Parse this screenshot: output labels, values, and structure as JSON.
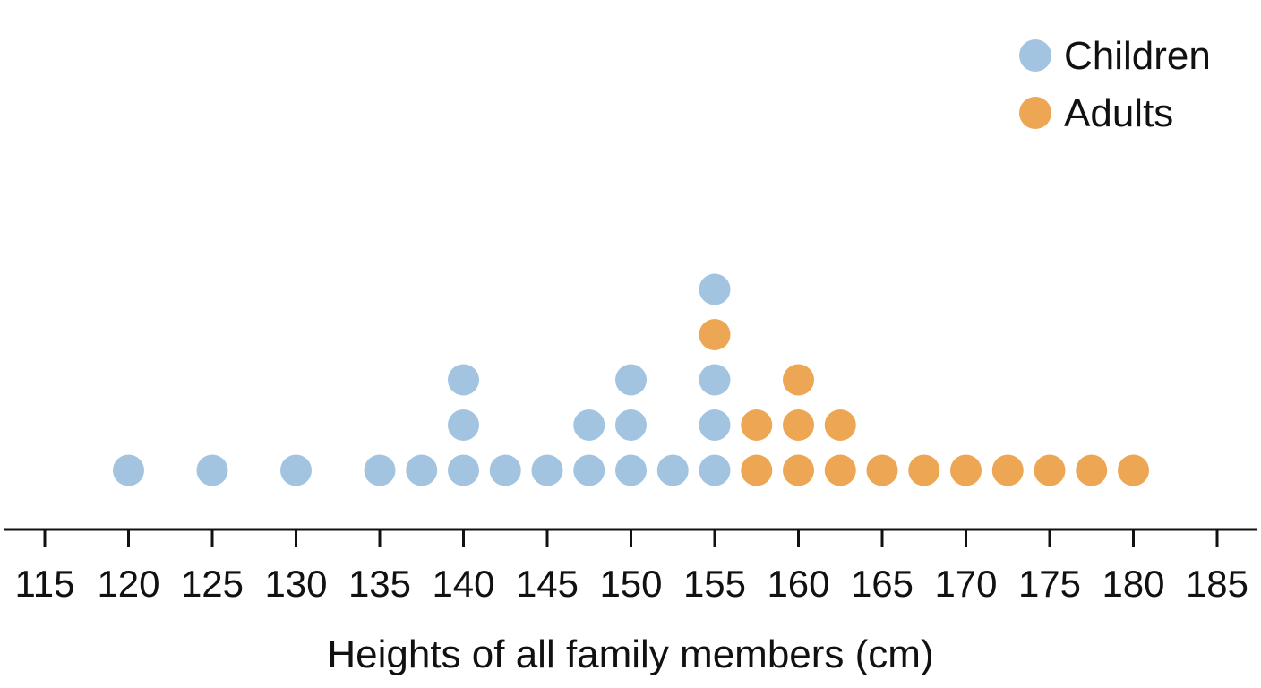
{
  "chart_data": {
    "type": "dot",
    "xlabel": "Heights of all family members (cm)",
    "ylabel": "",
    "xlim": [
      112.5,
      188
    ],
    "x_ticks": [
      115,
      120,
      125,
      130,
      135,
      140,
      145,
      150,
      155,
      160,
      165,
      170,
      175,
      180,
      185
    ],
    "grid": false,
    "legend_position": "top-right",
    "series": [
      {
        "name": "Children",
        "color": "#a3c4e0",
        "points": [
          {
            "x": 120,
            "stack": 1
          },
          {
            "x": 125,
            "stack": 1
          },
          {
            "x": 130,
            "stack": 1
          },
          {
            "x": 135,
            "stack": 1
          },
          {
            "x": 137.5,
            "stack": 1
          },
          {
            "x": 140,
            "stack": 1
          },
          {
            "x": 140,
            "stack": 2
          },
          {
            "x": 140,
            "stack": 3
          },
          {
            "x": 142.5,
            "stack": 1
          },
          {
            "x": 145,
            "stack": 1
          },
          {
            "x": 147.5,
            "stack": 1
          },
          {
            "x": 147.5,
            "stack": 2
          },
          {
            "x": 150,
            "stack": 1
          },
          {
            "x": 150,
            "stack": 2
          },
          {
            "x": 150,
            "stack": 3
          },
          {
            "x": 152.5,
            "stack": 1
          },
          {
            "x": 155,
            "stack": 1
          },
          {
            "x": 155,
            "stack": 2
          },
          {
            "x": 155,
            "stack": 3
          },
          {
            "x": 155,
            "stack": 5
          }
        ]
      },
      {
        "name": "Adults",
        "color": "#eda654",
        "points": [
          {
            "x": 155,
            "stack": 4
          },
          {
            "x": 157.5,
            "stack": 1
          },
          {
            "x": 157.5,
            "stack": 2
          },
          {
            "x": 160,
            "stack": 1
          },
          {
            "x": 160,
            "stack": 2
          },
          {
            "x": 160,
            "stack": 3
          },
          {
            "x": 162.5,
            "stack": 1
          },
          {
            "x": 162.5,
            "stack": 2
          },
          {
            "x": 165,
            "stack": 1
          },
          {
            "x": 167.5,
            "stack": 1
          },
          {
            "x": 170,
            "stack": 1
          },
          {
            "x": 172.5,
            "stack": 1
          },
          {
            "x": 175,
            "stack": 1
          },
          {
            "x": 177.5,
            "stack": 1
          },
          {
            "x": 180,
            "stack": 1
          }
        ]
      }
    ]
  },
  "colors": {
    "axis": "#111111",
    "children": "#a3c4e0",
    "adults": "#eda654"
  }
}
